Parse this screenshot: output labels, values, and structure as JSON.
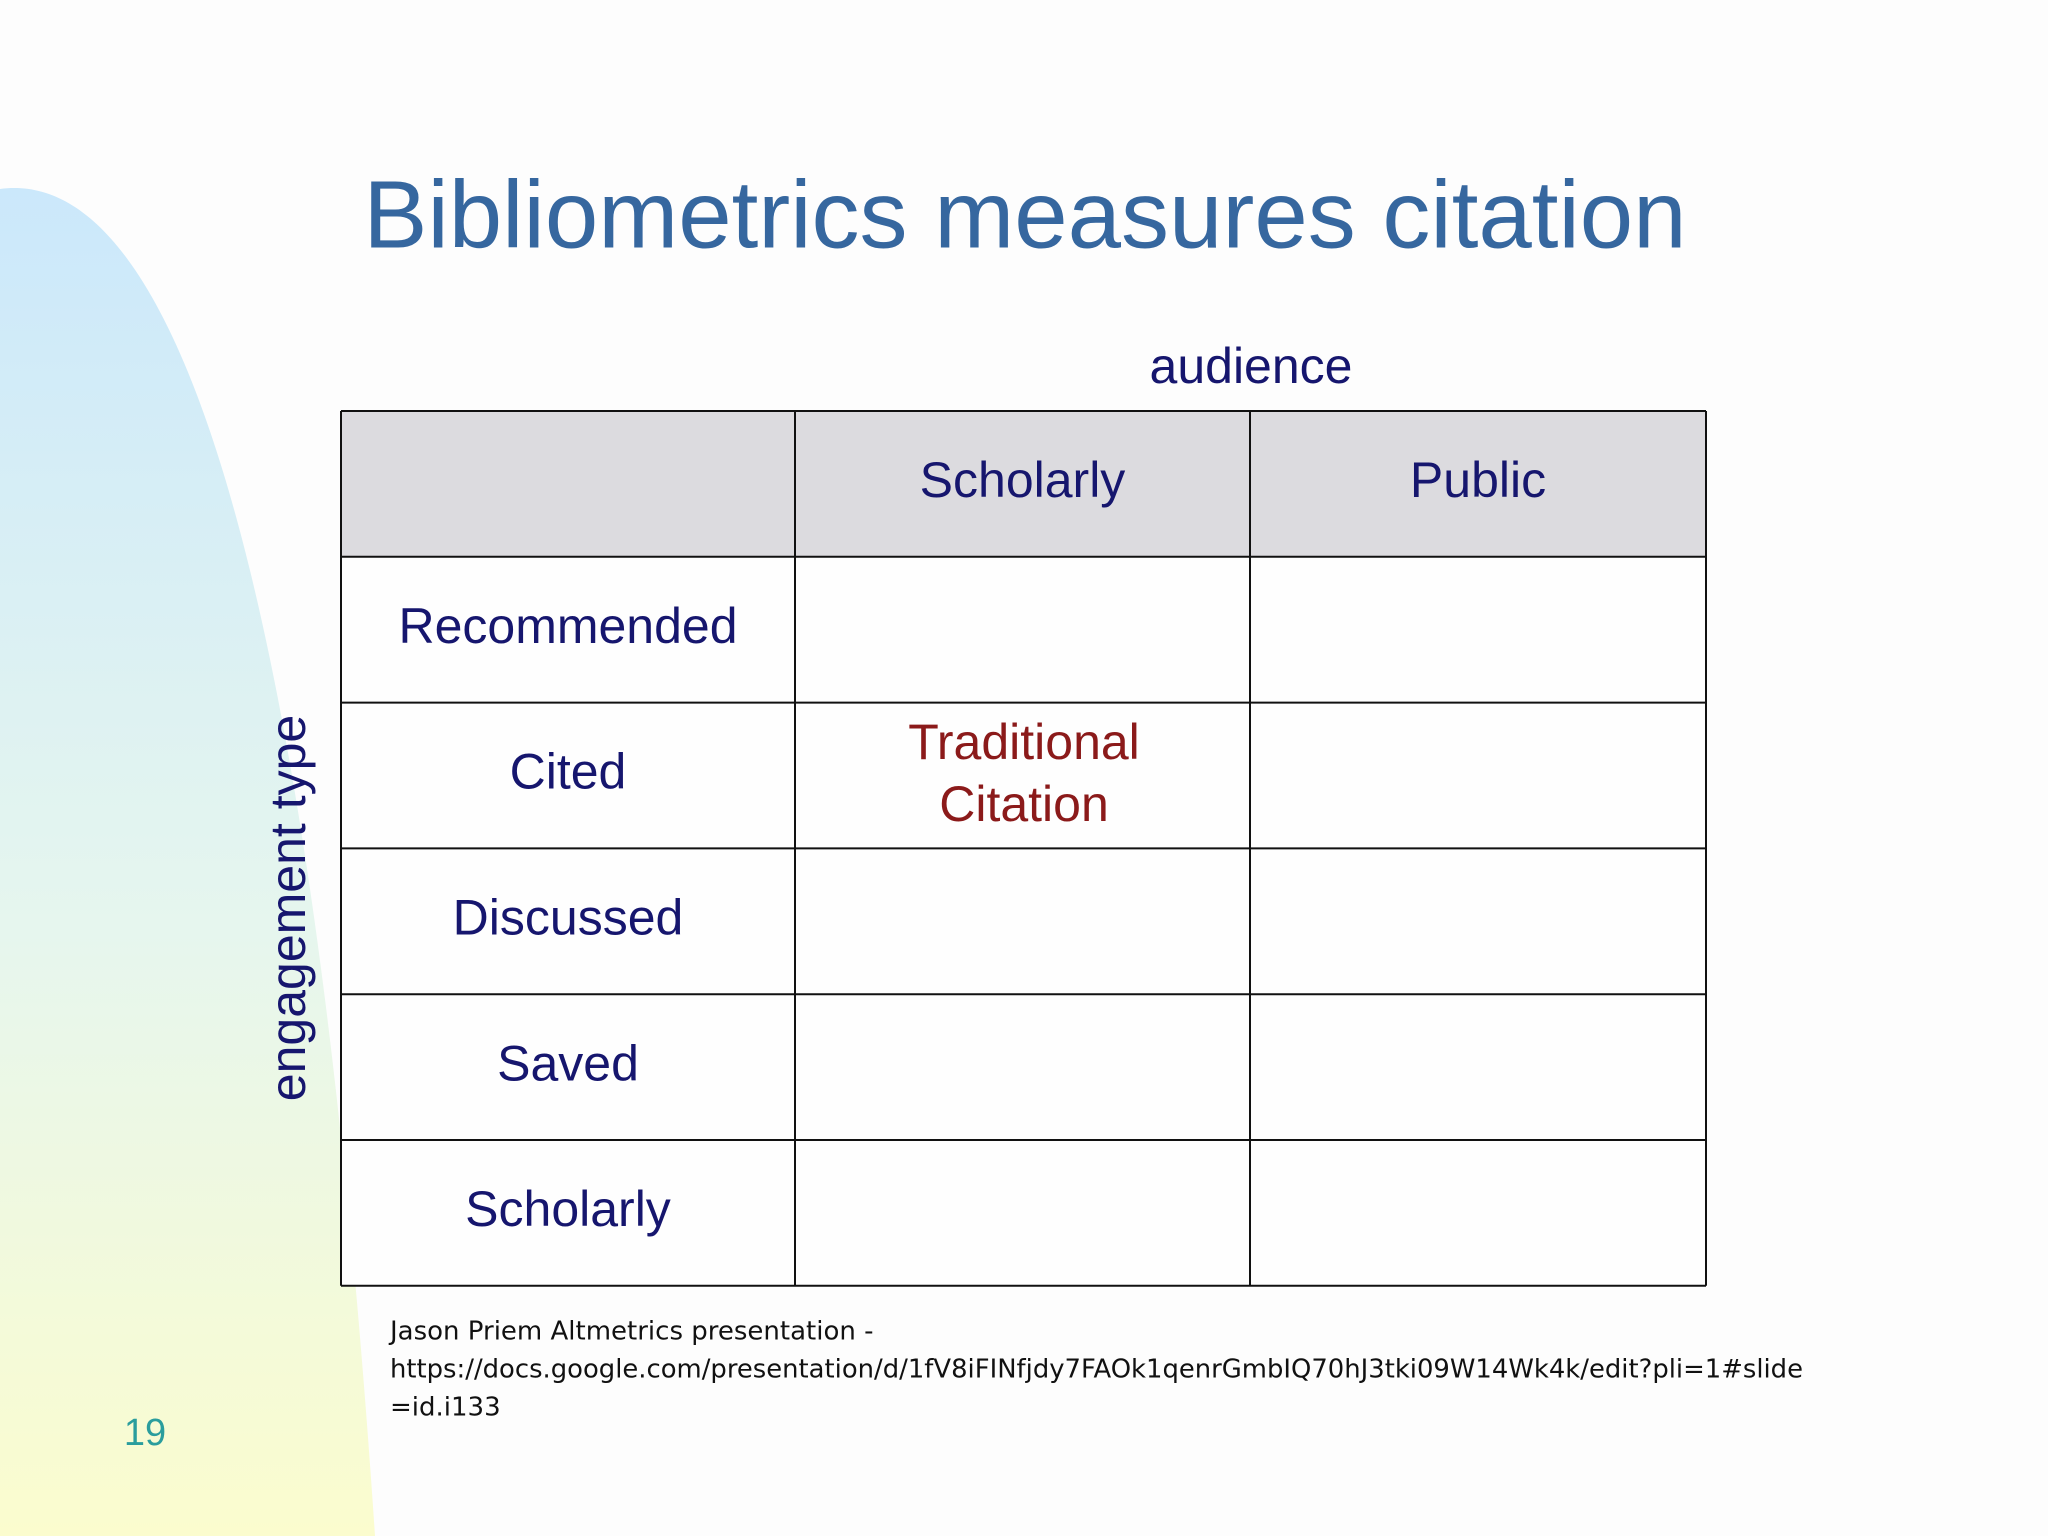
{
  "slide": {
    "title": "Bibliometrics measures citation",
    "column_axis_label": "audience",
    "row_axis_label": "engagement type",
    "table": {
      "column_headers": [
        "Scholarly",
        "Public"
      ],
      "row_headers": [
        "Recommended",
        "Cited",
        "Discussed",
        "Saved",
        "Scholarly"
      ],
      "highlighted_cell": [
        "Traditional",
        "Citation"
      ]
    },
    "footnote": [
      "Jason Priem Altmetrics presentation -",
      "https://docs.google.com/presentation/d/1fV8iFINfjdy7FAOk1qenrGmbIQ70hJ3tki09W14Wk4k/edit?pli=1#slide",
      "=id.i133"
    ],
    "page_number": "19"
  }
}
